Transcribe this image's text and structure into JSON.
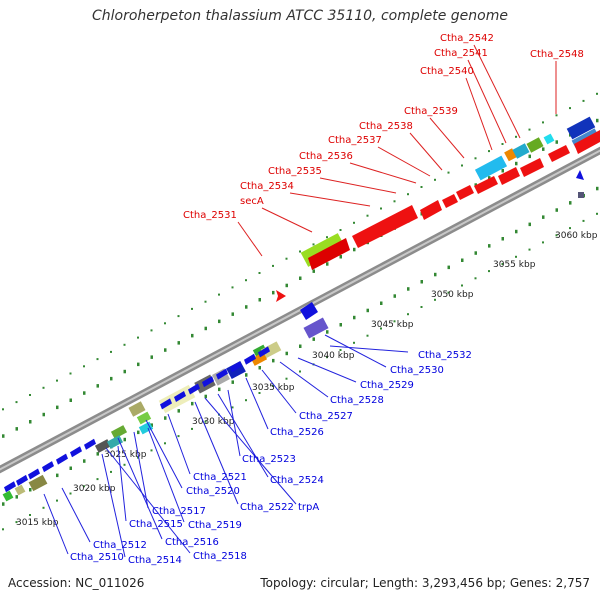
{
  "title": "Chloroherpeton thalassium ATCC 35110, complete genome",
  "footer": {
    "accession": "Accession: NC_011026",
    "topology": "Topology: circular; Length: 3,293,456 bp; Genes: 2,757"
  },
  "colors": {
    "forward_label": "#dd0000",
    "reverse_label": "#0000dd",
    "forward_gene": "#ee0000",
    "reverse_gene": "#1111dd",
    "backbone": "#909090",
    "tick": "#338833"
  },
  "kbp_labels": [
    "3015 kbp",
    "3020 kbp",
    "3025 kbp",
    "3030 kbp",
    "3035 kbp",
    "3040 kbp",
    "3045 kbp",
    "3050 kbp",
    "3055 kbp",
    "3060 kbp"
  ],
  "top_labels": [
    {
      "text": "Ctha_2531"
    },
    {
      "text": "secA"
    },
    {
      "text": "Ctha_2534"
    },
    {
      "text": "Ctha_2535"
    },
    {
      "text": "Ctha_2536"
    },
    {
      "text": "Ctha_2537"
    },
    {
      "text": "Ctha_2538"
    },
    {
      "text": "Ctha_2539"
    },
    {
      "text": "Ctha_2540"
    },
    {
      "text": "Ctha_2541"
    },
    {
      "text": "Ctha_2542"
    },
    {
      "text": "Ctha_2548"
    }
  ],
  "bottom_labels": [
    {
      "text": "Ctha_2532"
    },
    {
      "text": "Ctha_2530"
    },
    {
      "text": "Ctha_2529"
    },
    {
      "text": "Ctha_2528"
    },
    {
      "text": "Ctha_2527"
    },
    {
      "text": "Ctha_2526"
    },
    {
      "text": "Ctha_2523"
    },
    {
      "text": "Ctha_2524"
    },
    {
      "text": "trpA"
    },
    {
      "text": "Ctha_2522"
    },
    {
      "text": "Ctha_2521"
    },
    {
      "text": "Ctha_2520"
    },
    {
      "text": "Ctha_2519"
    },
    {
      "text": "Ctha_2517"
    },
    {
      "text": "Ctha_2515"
    },
    {
      "text": "Ctha_2516"
    },
    {
      "text": "Ctha_2518"
    },
    {
      "text": "Ctha_2512"
    },
    {
      "text": "Ctha_2514"
    },
    {
      "text": "Ctha_2510"
    }
  ]
}
